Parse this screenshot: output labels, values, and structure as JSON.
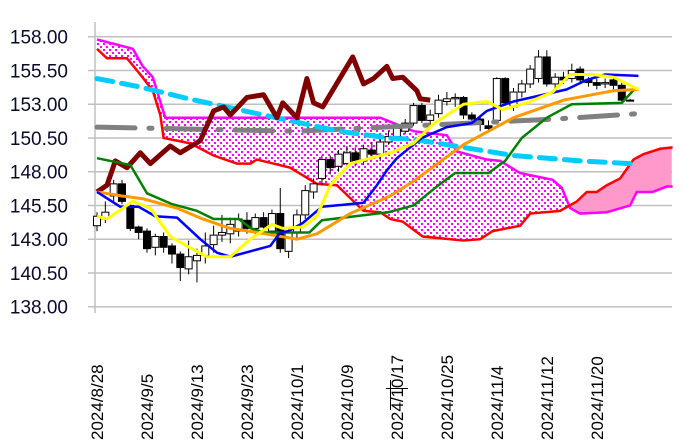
{
  "chart_data": {
    "type": "candlestick",
    "title": "",
    "xlabel": "",
    "ylabel": "",
    "ylim": [
      138,
      158
    ],
    "grid": "horizontal",
    "y_ticks": [
      "158.00",
      "155.50",
      "153.00",
      "150.50",
      "148.00",
      "145.50",
      "143.00",
      "140.50",
      "138.00"
    ],
    "y_tick_values": [
      158,
      155.5,
      153,
      150.5,
      148,
      145.5,
      143,
      140.5,
      138
    ],
    "x_ticks": [
      {
        "index": 0,
        "label": "2024/8/28"
      },
      {
        "index": 6,
        "label": "2024/9/5"
      },
      {
        "index": 12,
        "label": "2024/9/13"
      },
      {
        "index": 18,
        "label": "2024/9/23"
      },
      {
        "index": 24,
        "label": "2024/10/1"
      },
      {
        "index": 30,
        "label": "2024/10/9"
      },
      {
        "index": 36,
        "label": "2024/10/17"
      },
      {
        "index": 42,
        "label": "2024/10/25"
      },
      {
        "index": 48,
        "label": "2024/11/4"
      },
      {
        "index": 54,
        "label": "2024/11/12"
      },
      {
        "index": 60,
        "label": "2024/11/20"
      }
    ],
    "candles_ohlc": [
      [
        144.0,
        144.7,
        145.0,
        143.6
      ],
      [
        144.5,
        145.0,
        145.8,
        144.2
      ],
      [
        146.2,
        147.1,
        147.4,
        145.8
      ],
      [
        147.1,
        145.8,
        147.4,
        145.6
      ],
      [
        145.5,
        143.8,
        145.6,
        143.6
      ],
      [
        143.9,
        143.5,
        144.0,
        143.0
      ],
      [
        143.6,
        142.3,
        143.8,
        142.0
      ],
      [
        142.4,
        143.2,
        143.4,
        141.8
      ],
      [
        143.2,
        142.4,
        143.5,
        142.0
      ],
      [
        142.5,
        141.9,
        142.7,
        141.2
      ],
      [
        141.9,
        140.9,
        142.1,
        139.9
      ],
      [
        140.8,
        141.7,
        142.9,
        140.4
      ],
      [
        141.4,
        141.8,
        142.3,
        139.8
      ],
      [
        141.8,
        142.5,
        143.5,
        141.2
      ],
      [
        142.6,
        143.3,
        144.0,
        142.0
      ],
      [
        143.3,
        143.5,
        144.8,
        142.8
      ],
      [
        143.4,
        144.1,
        144.6,
        142.7
      ],
      [
        143.6,
        144.5,
        144.9,
        143.2
      ],
      [
        144.4,
        143.8,
        145.0,
        143.4
      ],
      [
        143.8,
        144.6,
        144.9,
        143.2
      ],
      [
        144.6,
        143.9,
        145.0,
        143.4
      ],
      [
        143.6,
        144.9,
        145.2,
        143.2
      ],
      [
        144.9,
        142.3,
        146.8,
        142.0
      ],
      [
        142.1,
        143.5,
        143.8,
        141.6
      ],
      [
        143.5,
        144.8,
        145.2,
        143.0
      ],
      [
        144.8,
        146.6,
        147.0,
        144.5
      ],
      [
        146.5,
        147.1,
        147.5,
        146.0
      ],
      [
        147.5,
        148.9,
        149.2,
        147.0
      ],
      [
        148.9,
        148.3,
        149.2,
        147.8
      ],
      [
        148.4,
        149.3,
        149.6,
        148.0
      ],
      [
        148.6,
        149.4,
        149.9,
        148.2
      ],
      [
        149.4,
        148.7,
        149.8,
        148.4
      ],
      [
        148.8,
        149.7,
        150.0,
        148.5
      ],
      [
        149.6,
        149.3,
        150.2,
        148.9
      ],
      [
        149.3,
        150.2,
        150.4,
        148.8
      ],
      [
        150.2,
        150.6,
        151.0,
        150.0
      ],
      [
        150.6,
        151.2,
        151.5,
        150.3
      ],
      [
        151.0,
        151.6,
        151.9,
        150.8
      ],
      [
        151.6,
        152.9,
        153.1,
        151.4
      ],
      [
        152.9,
        151.8,
        153.1,
        151.6
      ],
      [
        151.8,
        152.2,
        152.6,
        151.4
      ],
      [
        152.3,
        153.3,
        153.7,
        152.0
      ],
      [
        153.2,
        153.4,
        153.9,
        152.9
      ],
      [
        153.4,
        153.5,
        153.8,
        152.8
      ],
      [
        153.5,
        152.2,
        153.6,
        151.9
      ],
      [
        152.2,
        151.9,
        152.4,
        151.5
      ],
      [
        151.9,
        151.5,
        152.2,
        151.0
      ],
      [
        151.4,
        151.2,
        151.8,
        150.9
      ],
      [
        151.8,
        154.9,
        155.0,
        151.5
      ],
      [
        154.9,
        153.1,
        155.0,
        152.9
      ],
      [
        152.8,
        153.9,
        154.2,
        152.5
      ],
      [
        153.9,
        154.5,
        154.8,
        153.5
      ],
      [
        154.5,
        155.6,
        155.9,
        154.2
      ],
      [
        154.9,
        156.5,
        157.0,
        154.6
      ],
      [
        156.5,
        154.5,
        157.0,
        154.3
      ],
      [
        154.5,
        155.0,
        155.3,
        154.2
      ],
      [
        155.0,
        154.8,
        155.4,
        154.5
      ],
      [
        154.9,
        155.5,
        156.0,
        154.6
      ],
      [
        155.6,
        154.8,
        155.8,
        154.5
      ],
      [
        154.8,
        154.6,
        155.0,
        154.3
      ],
      [
        154.6,
        154.4,
        154.9,
        154.1
      ],
      [
        154.5,
        154.6,
        154.9,
        154.2
      ],
      [
        154.8,
        154.4,
        155.0,
        154.1
      ],
      [
        154.4,
        153.3,
        154.6,
        153.1
      ],
      [
        153.3,
        153.3,
        153.4,
        153.2
      ]
    ],
    "cloud": {
      "span_a": {
        "name": "senkou-span-a",
        "color": "#ff00ff",
        "points": [
          [
            0,
            157.8
          ],
          [
            4.3,
            157.1
          ],
          [
            5.5,
            155.8
          ],
          [
            6.7,
            155.0
          ],
          [
            8.2,
            152.0
          ],
          [
            34,
            152.0
          ],
          [
            36,
            151.5
          ],
          [
            38,
            151.0
          ],
          [
            42,
            150.7
          ],
          [
            43.2,
            149.5
          ],
          [
            46.8,
            148.9
          ],
          [
            48.4,
            148.8
          ],
          [
            50.8,
            147.9
          ],
          [
            54.7,
            147.4
          ],
          [
            55.8,
            146.8
          ],
          [
            56.8,
            145.3
          ],
          [
            58,
            144.9
          ],
          [
            61.2,
            145.0
          ],
          [
            64,
            145.5
          ],
          [
            64.8,
            146.5
          ],
          [
            66.7,
            146.5
          ],
          [
            68.4,
            146.9
          ],
          [
            69.1,
            146.9
          ]
        ]
      },
      "span_b": {
        "name": "senkou-span-b",
        "color": "#ff0000",
        "points": [
          [
            0,
            157.1
          ],
          [
            1.2,
            156.4
          ],
          [
            3.6,
            156.4
          ],
          [
            5.2,
            155.2
          ],
          [
            6.7,
            154.0
          ],
          [
            7.6,
            152.2
          ],
          [
            8,
            150.5
          ],
          [
            11.2,
            150.1
          ],
          [
            14,
            149.2
          ],
          [
            16.8,
            148.6
          ],
          [
            18.4,
            148.6
          ],
          [
            19.2,
            148.9
          ],
          [
            23.2,
            148.3
          ],
          [
            26.4,
            147.1
          ],
          [
            28.8,
            147.0
          ],
          [
            32,
            145.1
          ],
          [
            34,
            145.0
          ],
          [
            35.2,
            144.5
          ],
          [
            36.7,
            144.3
          ],
          [
            39.1,
            143.2
          ],
          [
            44,
            142.9
          ],
          [
            46,
            143.0
          ],
          [
            47.5,
            143.6
          ],
          [
            50.8,
            144.0
          ],
          [
            52,
            144.9
          ],
          [
            55.6,
            145.1
          ],
          [
            57.6,
            145.8
          ],
          [
            58.8,
            146.5
          ],
          [
            60,
            146.5
          ],
          [
            61.2,
            147.0
          ],
          [
            62.8,
            147.5
          ],
          [
            64.4,
            148.9
          ],
          [
            65.6,
            149.3
          ],
          [
            67.6,
            149.7
          ],
          [
            69.1,
            149.8
          ]
        ]
      },
      "bearish_fill": "dotted-magenta",
      "bullish_fill_color": "#ff99cc",
      "crossover_index": 56.5
    },
    "series": [
      {
        "name": "long-ma-gray",
        "color": "#808080",
        "points": [
          [
            0,
            151.3
          ],
          [
            24,
            151.0
          ],
          [
            38,
            151.4
          ],
          [
            55,
            151.9
          ],
          [
            65,
            152.3
          ]
        ]
      },
      {
        "name": "long-ma-cyan",
        "color": "#00ccff",
        "points": [
          [
            0,
            154.9
          ],
          [
            5,
            154.3
          ],
          [
            11,
            153.4
          ],
          [
            17,
            152.6
          ],
          [
            23,
            151.8
          ],
          [
            29,
            151.0
          ],
          [
            35,
            150.5
          ],
          [
            38,
            150.4
          ],
          [
            42,
            150.0
          ],
          [
            50,
            149.2
          ],
          [
            58,
            148.8
          ],
          [
            64,
            148.6
          ]
        ]
      },
      {
        "name": "chikou-span",
        "color": "#800000",
        "points": [
          [
            0,
            146.5
          ],
          [
            1.2,
            147.0
          ],
          [
            2.2,
            148.8
          ],
          [
            3.6,
            148.3
          ],
          [
            5.2,
            149.4
          ],
          [
            6.4,
            148.6
          ],
          [
            8.8,
            149.9
          ],
          [
            10,
            149.4
          ],
          [
            12.4,
            150.3
          ],
          [
            14,
            152.5
          ],
          [
            15.2,
            152.8
          ],
          [
            16,
            152.2
          ],
          [
            18,
            153.5
          ],
          [
            20,
            153.7
          ],
          [
            21.6,
            152.0
          ],
          [
            22.3,
            153.1
          ],
          [
            24,
            152.0
          ],
          [
            25.2,
            154.9
          ],
          [
            26,
            153.1
          ],
          [
            27.1,
            152.8
          ],
          [
            30.7,
            156.5
          ],
          [
            32,
            154.5
          ],
          [
            33.2,
            154.9
          ],
          [
            34.8,
            155.8
          ],
          [
            35.5,
            154.9
          ],
          [
            36.7,
            155.0
          ],
          [
            38.4,
            154.0
          ],
          [
            38.8,
            153.4
          ],
          [
            40,
            153.3
          ]
        ]
      },
      {
        "name": "green-line",
        "color": "#008000",
        "points": [
          [
            0,
            149.0
          ],
          [
            4,
            148.5
          ],
          [
            6,
            146.4
          ],
          [
            9,
            145.6
          ],
          [
            12,
            145.1
          ],
          [
            14,
            144.5
          ],
          [
            17,
            144.5
          ],
          [
            18.5,
            143.8
          ],
          [
            20,
            143.5
          ],
          [
            25.5,
            143.5
          ],
          [
            27,
            144.4
          ],
          [
            31,
            144.7
          ],
          [
            35,
            145.0
          ],
          [
            38,
            145.5
          ],
          [
            41,
            147.0
          ],
          [
            43,
            147.9
          ],
          [
            47,
            147.9
          ],
          [
            49,
            148.8
          ],
          [
            51,
            150.5
          ],
          [
            54,
            152.0
          ],
          [
            57,
            153.0
          ],
          [
            63,
            153.1
          ],
          [
            64.5,
            154.1
          ]
        ]
      },
      {
        "name": "orange-line",
        "color": "#ff9900",
        "points": [
          [
            0,
            146.5
          ],
          [
            3,
            146.2
          ],
          [
            5.5,
            146.0
          ],
          [
            9.6,
            145.3
          ],
          [
            12.7,
            144.5
          ],
          [
            16,
            143.8
          ],
          [
            19.2,
            143.5
          ],
          [
            24,
            143.0
          ],
          [
            26.4,
            143.4
          ],
          [
            30.4,
            144.9
          ],
          [
            35.2,
            146.2
          ],
          [
            38,
            147.3
          ],
          [
            44,
            150.0
          ],
          [
            50,
            152.0
          ],
          [
            56,
            153.3
          ],
          [
            62,
            154.0
          ],
          [
            65,
            154.1
          ]
        ]
      },
      {
        "name": "tenkan-sen-blue",
        "color": "#0000ff",
        "points": [
          [
            0,
            146.5
          ],
          [
            2.8,
            145.4
          ],
          [
            5,
            145.4
          ],
          [
            7,
            144.7
          ],
          [
            9.6,
            144.6
          ],
          [
            12.4,
            143.0
          ],
          [
            14.4,
            142.0
          ],
          [
            16,
            141.7
          ],
          [
            20.8,
            142.5
          ],
          [
            22,
            143.5
          ],
          [
            23,
            143.6
          ],
          [
            24.7,
            144.2
          ],
          [
            27,
            145.4
          ],
          [
            30.4,
            145.6
          ],
          [
            32,
            145.7
          ],
          [
            33.6,
            147.0
          ],
          [
            34.8,
            148.1
          ],
          [
            36,
            149.0
          ],
          [
            39,
            150.5
          ],
          [
            42,
            151.3
          ],
          [
            45,
            151.6
          ],
          [
            46.8,
            152.5
          ],
          [
            50,
            153.2
          ],
          [
            56.4,
            154.1
          ],
          [
            58.8,
            154.8
          ],
          [
            61,
            155.2
          ],
          [
            65,
            155.1
          ]
        ]
      },
      {
        "name": "yellow-line",
        "color": "#ffff00",
        "points": [
          [
            0,
            144.7
          ],
          [
            1.2,
            144.5
          ],
          [
            4.3,
            145.8
          ],
          [
            6.4,
            145.3
          ],
          [
            8.8,
            143.2
          ],
          [
            10.8,
            142.5
          ],
          [
            13.2,
            141.7
          ],
          [
            16,
            141.7
          ],
          [
            18.4,
            143.0
          ],
          [
            21,
            144.1
          ],
          [
            22.3,
            143.8
          ],
          [
            24.7,
            143.9
          ],
          [
            26.4,
            144.7
          ],
          [
            28,
            147.0
          ],
          [
            30.4,
            148.6
          ],
          [
            32.8,
            149.0
          ],
          [
            35.2,
            149.4
          ],
          [
            38,
            150.1
          ],
          [
            40.3,
            151.5
          ],
          [
            44,
            153.0
          ],
          [
            46.8,
            153.2
          ],
          [
            48.7,
            152.6
          ],
          [
            51.6,
            153.1
          ],
          [
            54.7,
            153.9
          ],
          [
            56.8,
            155.2
          ],
          [
            59.5,
            155.2
          ],
          [
            62,
            155.0
          ],
          [
            65,
            154.1
          ]
        ]
      }
    ],
    "candle_colors": {
      "up_body": "#ffffff",
      "down_body": "#000000",
      "outline": "#000000"
    }
  }
}
